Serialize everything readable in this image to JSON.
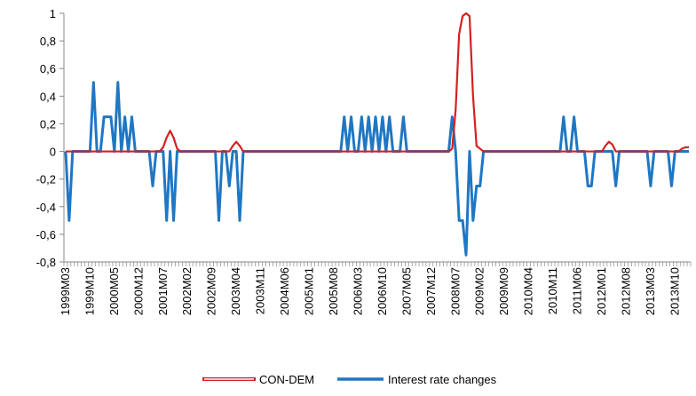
{
  "chart_data": {
    "type": "line",
    "categories": [
      "1999M03",
      null,
      null,
      null,
      null,
      null,
      null,
      "1999M10",
      null,
      null,
      null,
      null,
      null,
      null,
      "2000M05",
      null,
      null,
      null,
      null,
      null,
      null,
      "2000M12",
      null,
      null,
      null,
      null,
      null,
      null,
      "2001M07",
      null,
      null,
      null,
      null,
      null,
      null,
      "2002M02",
      null,
      null,
      null,
      null,
      null,
      null,
      "2002M09",
      null,
      null,
      null,
      null,
      null,
      null,
      "2003M04",
      null,
      null,
      null,
      null,
      null,
      null,
      "2003M11",
      null,
      null,
      null,
      null,
      null,
      null,
      "2004M06",
      null,
      null,
      null,
      null,
      null,
      null,
      "2005M01",
      null,
      null,
      null,
      null,
      null,
      null,
      "2005M08",
      null,
      null,
      null,
      null,
      null,
      null,
      "2006M03",
      null,
      null,
      null,
      null,
      null,
      null,
      "2006M10",
      null,
      null,
      null,
      null,
      null,
      null,
      "2007M05",
      null,
      null,
      null,
      null,
      null,
      null,
      "2007M12",
      null,
      null,
      null,
      null,
      null,
      null,
      "2008M07",
      null,
      null,
      null,
      null,
      null,
      null,
      "2009M02",
      null,
      null,
      null,
      null,
      null,
      null,
      "2009M09",
      null,
      null,
      null,
      null,
      null,
      null,
      "2010M04",
      null,
      null,
      null,
      null,
      null,
      null,
      "2010M11",
      null,
      null,
      null,
      null,
      null,
      null,
      "2011M06",
      null,
      null,
      null,
      null,
      null,
      null,
      "2012M01",
      null,
      null,
      null,
      null,
      null,
      null,
      "2012M08",
      null,
      null,
      null,
      null,
      null,
      null,
      "2013M03",
      null,
      null,
      null,
      null,
      null,
      null,
      "2013M10",
      null,
      null,
      null,
      null
    ],
    "series": [
      {
        "name": "CON-DEM",
        "color": "#d62020",
        "values": [
          0,
          0,
          0,
          0,
          0,
          0,
          0,
          0,
          0,
          0,
          0,
          0,
          0,
          0,
          0,
          0,
          0,
          0,
          0,
          0,
          0,
          0,
          0,
          0,
          0,
          0,
          0,
          0,
          0.03,
          0.1,
          0.15,
          0.1,
          0.02,
          0,
          0,
          0,
          0,
          0,
          0,
          0,
          0,
          0,
          0,
          0,
          0,
          0,
          0,
          0,
          0.04,
          0.07,
          0.04,
          0,
          0,
          0,
          0,
          0,
          0,
          0,
          0,
          0,
          0,
          0,
          0,
          0,
          0,
          0,
          0,
          0,
          0,
          0,
          0,
          0,
          0,
          0,
          0,
          0,
          0,
          0,
          0,
          0,
          0,
          0,
          0,
          0,
          0,
          0,
          0,
          0,
          0,
          0,
          0,
          0,
          0,
          0,
          0,
          0,
          0,
          0,
          0,
          0,
          0,
          0,
          0,
          0,
          0,
          0,
          0,
          0,
          0,
          0,
          0,
          0.02,
          0.3,
          0.85,
          0.98,
          1,
          0.98,
          0.4,
          0.04,
          0.02,
          0,
          0,
          0,
          0,
          0,
          0,
          0,
          0,
          0,
          0,
          0,
          0,
          0,
          0,
          0,
          0,
          0,
          0,
          0,
          0,
          0,
          0,
          0,
          0,
          0,
          0,
          0,
          0,
          0,
          0,
          0,
          0,
          0,
          0,
          0,
          0.04,
          0.07,
          0.05,
          0,
          0,
          0,
          0,
          0,
          0,
          0,
          0,
          0,
          0,
          0,
          0,
          0,
          0,
          0,
          0,
          0,
          0,
          0,
          0.02,
          0.03,
          0.03
        ]
      },
      {
        "name": "Interest rate changes",
        "color": "#1f77c4",
        "values": [
          0,
          -0.5,
          0,
          0,
          0,
          0,
          0,
          0,
          0.5,
          0,
          0,
          0.25,
          0.25,
          0.25,
          0,
          0.5,
          0,
          0.25,
          0,
          0.25,
          0,
          0,
          0,
          0,
          0,
          -0.25,
          0,
          0,
          0,
          -0.5,
          0,
          -0.5,
          0,
          0,
          0,
          0,
          0,
          0,
          0,
          0,
          0,
          0,
          0,
          0,
          -0.5,
          0,
          0,
          -0.25,
          0,
          0,
          -0.5,
          0,
          0,
          0,
          0,
          0,
          0,
          0,
          0,
          0,
          0,
          0,
          0,
          0,
          0,
          0,
          0,
          0,
          0,
          0,
          0,
          0,
          0,
          0,
          0,
          0,
          0,
          0,
          0,
          0,
          0.25,
          0,
          0.25,
          0,
          0,
          0.25,
          0,
          0.25,
          0,
          0.25,
          0,
          0.25,
          0,
          0.25,
          0,
          0,
          0,
          0.25,
          0,
          0,
          0,
          0,
          0,
          0,
          0,
          0,
          0,
          0,
          0,
          0,
          0,
          0.25,
          0,
          -0.5,
          -0.5,
          -0.75,
          0,
          -0.5,
          -0.25,
          -0.25,
          0,
          0,
          0,
          0,
          0,
          0,
          0,
          0,
          0,
          0,
          0,
          0,
          0,
          0,
          0,
          0,
          0,
          0,
          0,
          0,
          0,
          0,
          0,
          0.25,
          0,
          0,
          0.25,
          0,
          0,
          0,
          -0.25,
          -0.25,
          0,
          0,
          0,
          0,
          0,
          0,
          -0.25,
          0,
          0,
          0,
          0,
          0,
          0,
          0,
          0,
          0,
          -0.25,
          0,
          0,
          0,
          0,
          0,
          -0.25,
          0,
          0,
          0,
          0,
          0
        ]
      }
    ],
    "ylim": [
      -0.8,
      1
    ],
    "yticks": [
      {
        "value": -0.8,
        "label": "-0,8"
      },
      {
        "value": -0.6,
        "label": "-0,6"
      },
      {
        "value": -0.4,
        "label": "-0,4"
      },
      {
        "value": -0.2,
        "label": "-0,2"
      },
      0,
      {
        "value": 0.2,
        "label": "0,2"
      },
      {
        "value": 0.4,
        "label": "0,4"
      },
      {
        "value": 0.6,
        "label": "0,6"
      },
      {
        "value": 0.8,
        "label": "0,8"
      },
      1
    ],
    "legend": "bottom"
  }
}
